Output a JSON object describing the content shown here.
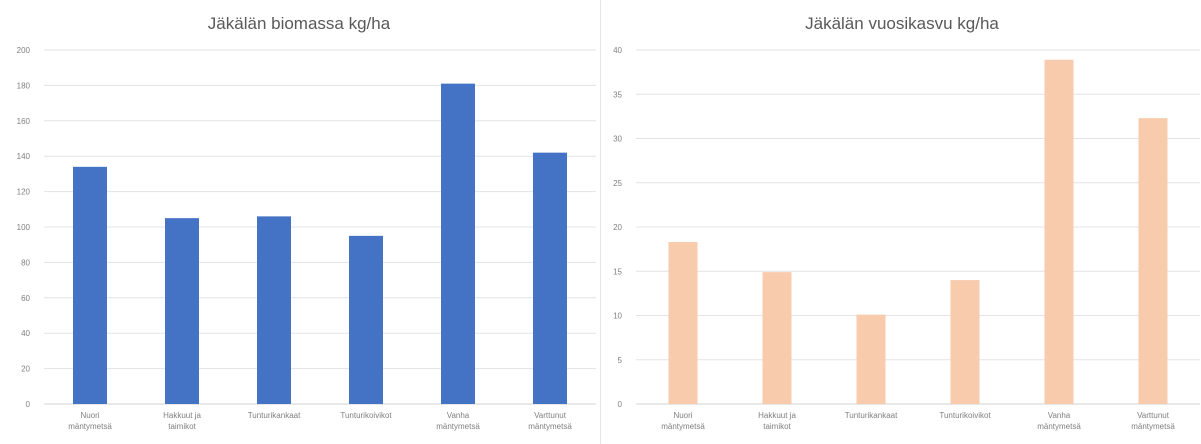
{
  "chart_data": [
    {
      "type": "bar",
      "title": "Jäkälän biomassa kg/ha",
      "categories": [
        [
          "Nuori",
          "mäntymetsä"
        ],
        [
          "Hakkuut ja",
          "taimikot"
        ],
        [
          "Tunturikankaat"
        ],
        [
          "Tunturikoivikot"
        ],
        [
          "Vanha",
          "mäntymetsä"
        ],
        [
          "Varttunut",
          "mäntymetsä"
        ]
      ],
      "values": [
        134,
        105,
        106,
        95,
        181,
        142
      ],
      "ylim": [
        0,
        200
      ],
      "yticks": [
        0,
        20,
        40,
        60,
        80,
        100,
        120,
        140,
        160,
        180,
        200
      ],
      "color": "#4472c4",
      "grid": true
    },
    {
      "type": "bar",
      "title": "Jäkälän vuosikasvu kg/ha",
      "categories": [
        [
          "Nuori",
          "mäntymetsä"
        ],
        [
          "Hakkuut ja",
          "taimikot"
        ],
        [
          "Tunturikankaat"
        ],
        [
          "Tunturikoivikot"
        ],
        [
          "Vanha",
          "mäntymetsä"
        ],
        [
          "Varttunut",
          "mäntymetsä"
        ]
      ],
      "values": [
        18.3,
        14.9,
        10.1,
        14.0,
        38.9,
        32.3
      ],
      "ylim": [
        0,
        40
      ],
      "yticks": [
        0,
        5,
        10,
        15,
        20,
        25,
        30,
        35,
        40
      ],
      "color": "#f8cbad",
      "grid": true
    }
  ]
}
